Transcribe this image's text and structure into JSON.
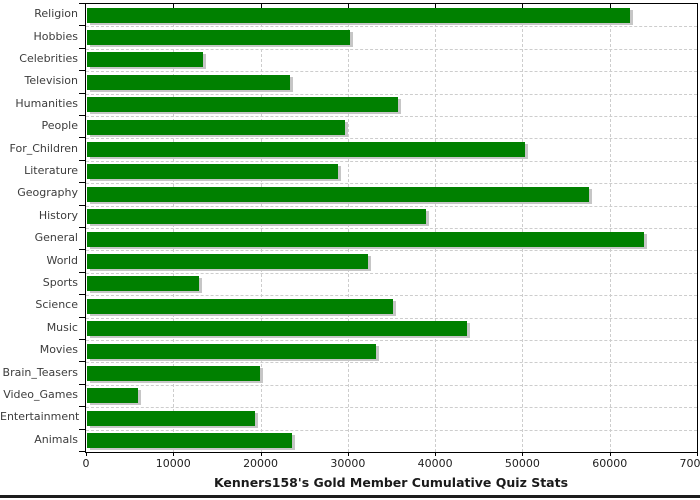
{
  "chart_data": {
    "type": "bar",
    "orientation": "horizontal",
    "title": "Kenners158's Gold Member Cumulative Quiz Stats",
    "categories": [
      "Religion",
      "Hobbies",
      "Celebrities",
      "Television",
      "Humanities",
      "People",
      "For_Children",
      "Literature",
      "Geography",
      "History",
      "General",
      "World",
      "Sports",
      "Science",
      "Music",
      "Movies",
      "Brain_Teasers",
      "Video_Games",
      "Entertainment",
      "Animals"
    ],
    "values": [
      62200,
      30100,
      13300,
      23200,
      35600,
      29600,
      50200,
      28800,
      57500,
      38800,
      63800,
      32200,
      12800,
      35000,
      43500,
      33100,
      19800,
      5800,
      19200,
      23500
    ],
    "xlabel": "",
    "ylabel": "",
    "xlim": [
      0,
      70000
    ],
    "x_ticks": [
      0,
      10000,
      20000,
      30000,
      40000,
      50000,
      60000,
      70000
    ],
    "grid": "dashed-both-axes",
    "legend": "none",
    "colors": {
      "bar": "#008000",
      "bar_shadow": "#c6c6c6",
      "gridline": "#cdcdcd",
      "frame": "#000000",
      "title_text": "#1a1a1a",
      "tick_text": "#1f1f1f",
      "category_text": "#3c3c3c",
      "background": "#ffffff"
    }
  }
}
